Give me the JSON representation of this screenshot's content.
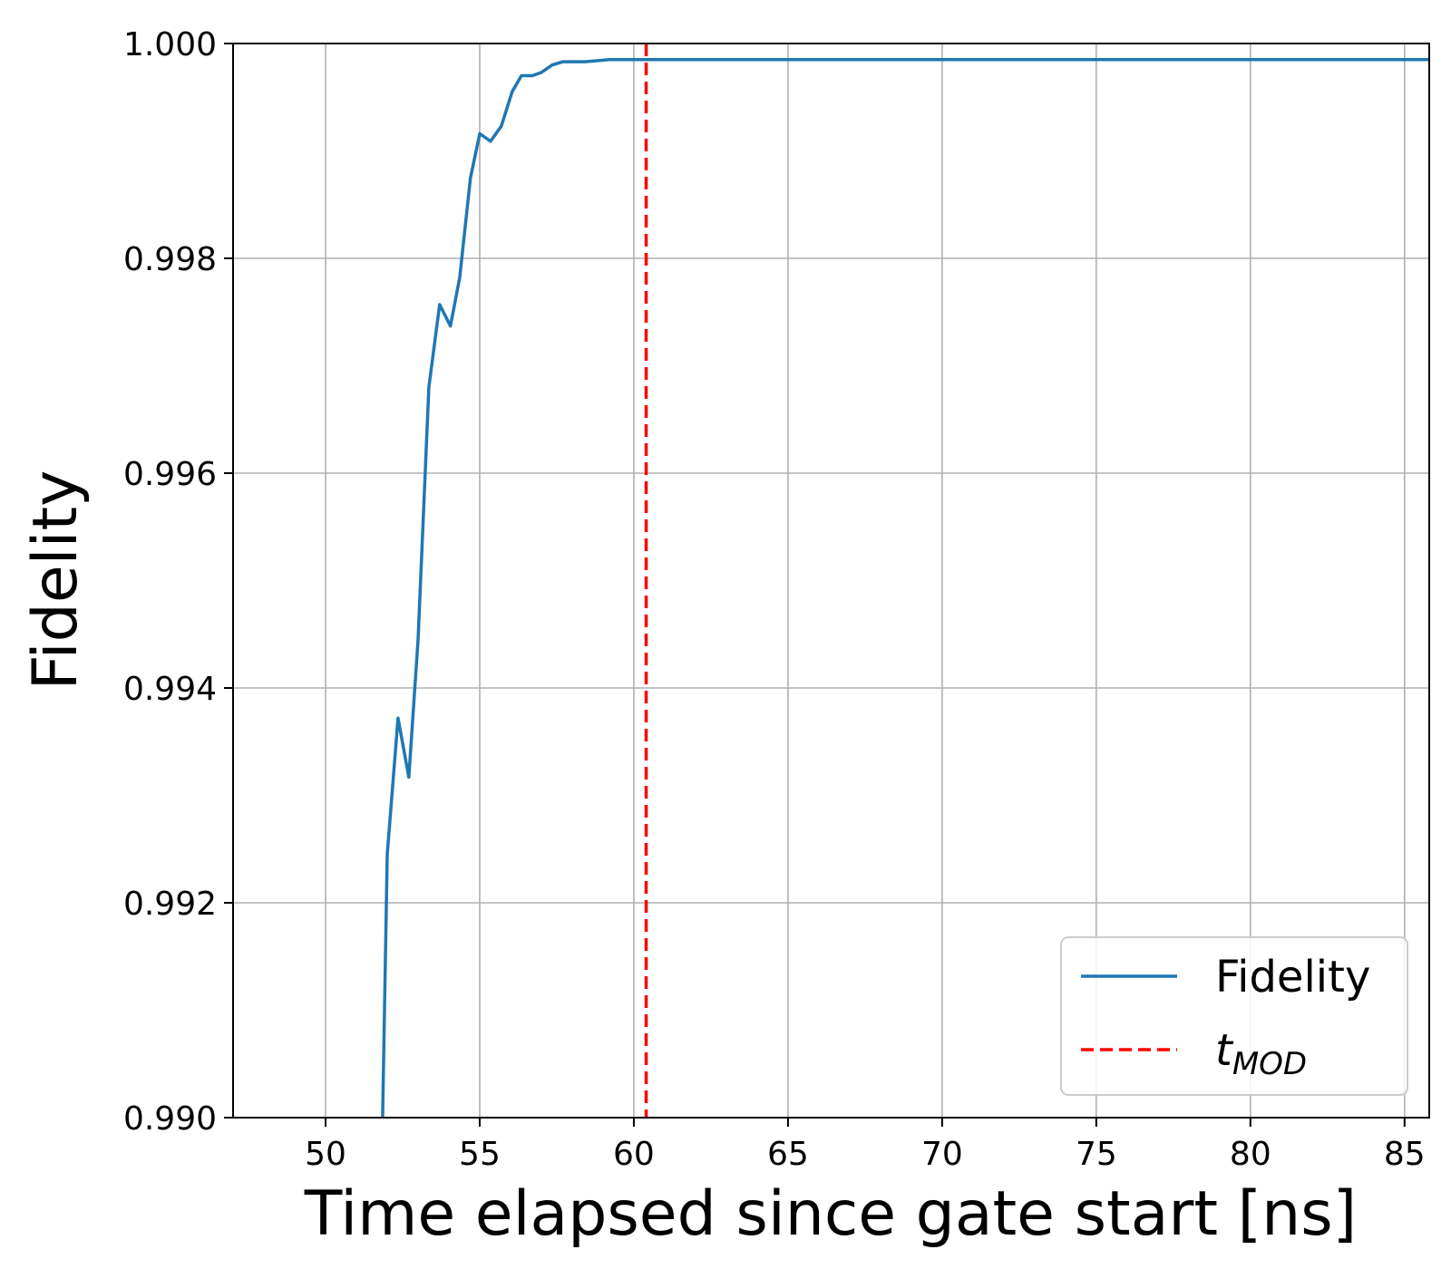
{
  "chart_data": {
    "type": "line",
    "xlabel": "Time elapsed since gate start [ns]",
    "ylabel": "Fidelity",
    "xlim": [
      47,
      85.8
    ],
    "ylim": [
      0.99,
      1.0
    ],
    "x_ticks": [
      "50",
      "55",
      "60",
      "65",
      "70",
      "75",
      "80",
      "85"
    ],
    "y_ticks": [
      "0.990",
      "0.992",
      "0.994",
      "0.996",
      "0.998",
      "1.000"
    ],
    "grid": true,
    "legend_position": "lower-right",
    "series": [
      {
        "name": "Fidelity",
        "style": "solid",
        "color": "#1f77b4",
        "x": [
          51.85,
          52.0,
          52.35,
          52.7,
          53.0,
          53.35,
          53.7,
          54.05,
          54.35,
          54.7,
          55.0,
          55.35,
          55.7,
          56.05,
          56.35,
          56.7,
          57.0,
          57.35,
          57.7,
          58.0,
          58.4,
          58.8,
          59.2,
          59.6,
          60.0,
          62.0,
          65.0,
          70.0,
          75.0,
          80.0,
          85.8
        ],
        "y": [
          0.99,
          0.99245,
          0.99372,
          0.99317,
          0.99445,
          0.9968,
          0.99757,
          0.99737,
          0.99782,
          0.99875,
          0.99916,
          0.99909,
          0.99923,
          0.99955,
          0.9997,
          0.9997,
          0.99973,
          0.9998,
          0.99983,
          0.99983,
          0.99983,
          0.99984,
          0.99985,
          0.99985,
          0.99985,
          0.99985,
          0.99985,
          0.99985,
          0.99985,
          0.99985,
          0.99985
        ]
      },
      {
        "name": "t",
        "name_subscript": "MOD",
        "style": "dashed",
        "color": "#ff0000",
        "vline_x": 60.4
      }
    ]
  }
}
